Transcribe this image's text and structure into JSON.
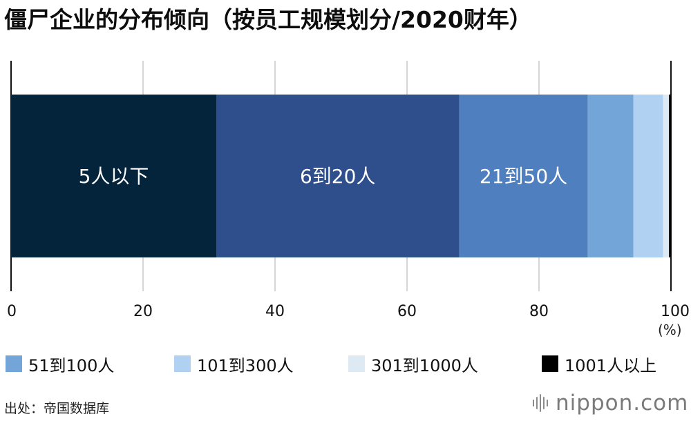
{
  "chart_data": {
    "type": "bar",
    "orientation": "horizontal-stacked",
    "title": "僵尸企业的分布倾向（按员工规模划分/2020财年）",
    "xlim": [
      0,
      100
    ],
    "x_ticks": [
      "0",
      "20",
      "40",
      "60",
      "80",
      "100"
    ],
    "unit": "(%)",
    "gridlines": true,
    "legend_position": "bottom",
    "series": [
      {
        "name": "5人以下",
        "value": 31.1,
        "color": "#03243a",
        "label_on_bar": "5人以下",
        "in_legend": false
      },
      {
        "name": "6到20人",
        "value": 36.8,
        "color": "#2f4e8c",
        "label_on_bar": "6到20人",
        "in_legend": false
      },
      {
        "name": "21到50人",
        "value": 19.5,
        "color": "#4f7fbe",
        "label_on_bar": "21到50人",
        "in_legend": false
      },
      {
        "name": "51到100人",
        "value": 6.9,
        "color": "#73a5d9",
        "label_on_bar": "",
        "in_legend": true
      },
      {
        "name": "101到300人",
        "value": 4.5,
        "color": "#b1d1f3",
        "label_on_bar": "",
        "in_legend": true
      },
      {
        "name": "301到1000人",
        "value": 0.9,
        "color": "#dde9f3",
        "label_on_bar": "",
        "in_legend": true
      },
      {
        "name": "1001人以上",
        "value": 0.3,
        "color": "#000000",
        "label_on_bar": "",
        "in_legend": true
      }
    ]
  },
  "source": "出处：帝国数据库",
  "logo": "nippon.com"
}
